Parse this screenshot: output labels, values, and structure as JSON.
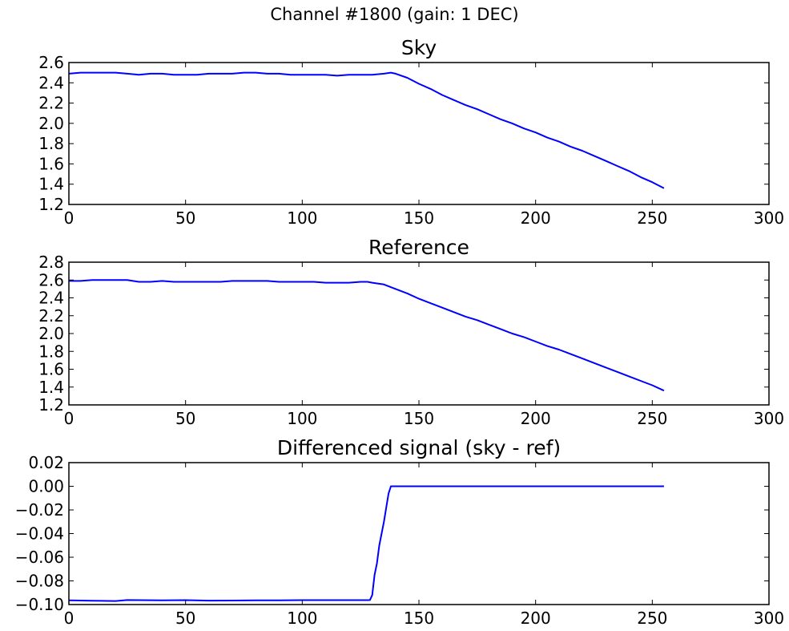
{
  "figure": {
    "suptitle": "Channel #1800 (gain: 1 DEC)"
  },
  "chart_data": [
    {
      "type": "line",
      "title": "Sky",
      "xlabel": "",
      "ylabel": "",
      "xlim": [
        0,
        300
      ],
      "ylim": [
        1.2,
        2.6
      ],
      "xticks": [
        0,
        50,
        100,
        150,
        200,
        250,
        300
      ],
      "xtick_labels": [
        "0",
        "50",
        "100",
        "150",
        "200",
        "250",
        "300"
      ],
      "yticks": [
        1.2,
        1.4,
        1.6,
        1.8,
        2.0,
        2.2,
        2.4,
        2.6
      ],
      "ytick_labels": [
        "1.2",
        "1.4",
        "1.6",
        "1.8",
        "2.0",
        "2.2",
        "2.4",
        "2.6"
      ],
      "grid": false,
      "color": "#0000ff",
      "series": [
        {
          "x": [
            0,
            5,
            10,
            15,
            20,
            25,
            30,
            35,
            40,
            45,
            50,
            55,
            60,
            65,
            70,
            75,
            80,
            85,
            90,
            95,
            100,
            105,
            110,
            115,
            120,
            125,
            130,
            135,
            138,
            140,
            145,
            150,
            155,
            160,
            165,
            170,
            175,
            180,
            185,
            190,
            195,
            200,
            205,
            210,
            215,
            220,
            225,
            230,
            235,
            240,
            245,
            250,
            255
          ],
          "values": [
            2.49,
            2.5,
            2.5,
            2.5,
            2.5,
            2.49,
            2.48,
            2.49,
            2.49,
            2.48,
            2.48,
            2.48,
            2.49,
            2.49,
            2.49,
            2.5,
            2.5,
            2.49,
            2.49,
            2.48,
            2.48,
            2.48,
            2.48,
            2.47,
            2.48,
            2.48,
            2.48,
            2.49,
            2.5,
            2.49,
            2.45,
            2.39,
            2.34,
            2.28,
            2.23,
            2.18,
            2.14,
            2.09,
            2.04,
            2.0,
            1.95,
            1.91,
            1.86,
            1.82,
            1.77,
            1.73,
            1.68,
            1.63,
            1.58,
            1.53,
            1.47,
            1.42,
            1.36
          ]
        }
      ]
    },
    {
      "type": "line",
      "title": "Reference",
      "xlabel": "",
      "ylabel": "",
      "xlim": [
        0,
        300
      ],
      "ylim": [
        1.2,
        2.8
      ],
      "xticks": [
        0,
        50,
        100,
        150,
        200,
        250,
        300
      ],
      "xtick_labels": [
        "0",
        "50",
        "100",
        "150",
        "200",
        "250",
        "300"
      ],
      "yticks": [
        1.2,
        1.4,
        1.6,
        1.8,
        2.0,
        2.2,
        2.4,
        2.6,
        2.8
      ],
      "ytick_labels": [
        "1.2",
        "1.4",
        "1.6",
        "1.8",
        "2.0",
        "2.2",
        "2.4",
        "2.6",
        "2.8"
      ],
      "grid": false,
      "color": "#0000ff",
      "series": [
        {
          "x": [
            0,
            5,
            10,
            15,
            20,
            25,
            30,
            35,
            40,
            45,
            50,
            55,
            60,
            65,
            70,
            75,
            80,
            85,
            90,
            95,
            100,
            105,
            110,
            115,
            120,
            125,
            128,
            130,
            135,
            140,
            145,
            150,
            155,
            160,
            165,
            170,
            175,
            180,
            185,
            190,
            195,
            200,
            205,
            210,
            215,
            220,
            225,
            230,
            235,
            240,
            245,
            250,
            255
          ],
          "values": [
            2.59,
            2.59,
            2.6,
            2.6,
            2.6,
            2.6,
            2.58,
            2.58,
            2.59,
            2.58,
            2.58,
            2.58,
            2.58,
            2.58,
            2.59,
            2.59,
            2.59,
            2.59,
            2.58,
            2.58,
            2.58,
            2.58,
            2.57,
            2.57,
            2.57,
            2.58,
            2.58,
            2.57,
            2.55,
            2.5,
            2.45,
            2.39,
            2.34,
            2.29,
            2.24,
            2.19,
            2.15,
            2.1,
            2.05,
            2.0,
            1.96,
            1.91,
            1.86,
            1.82,
            1.77,
            1.72,
            1.67,
            1.62,
            1.57,
            1.52,
            1.47,
            1.42,
            1.36
          ]
        }
      ]
    },
    {
      "type": "line",
      "title": "Differenced signal (sky - ref)",
      "xlabel": "",
      "ylabel": "",
      "xlim": [
        0,
        300
      ],
      "ylim": [
        -0.1,
        0.02
      ],
      "xticks": [
        0,
        50,
        100,
        150,
        200,
        250,
        300
      ],
      "xtick_labels": [
        "0",
        "50",
        "100",
        "150",
        "200",
        "250",
        "300"
      ],
      "yticks": [
        -0.1,
        -0.08,
        -0.06,
        -0.04,
        -0.02,
        0.0,
        0.02
      ],
      "ytick_labels": [
        "−0.10",
        "−0.08",
        "−0.06",
        "−0.04",
        "−0.02",
        "0.00",
        "0.02"
      ],
      "grid": false,
      "color": "#0000ff",
      "series": [
        {
          "x": [
            0,
            10,
            20,
            25,
            30,
            40,
            50,
            60,
            70,
            80,
            90,
            100,
            110,
            120,
            128,
            129,
            130,
            131,
            132,
            133,
            134,
            135,
            136,
            137,
            138,
            139,
            140,
            150,
            160,
            200,
            255
          ],
          "values": [
            -0.0965,
            -0.0968,
            -0.097,
            -0.0962,
            -0.0963,
            -0.0965,
            -0.0963,
            -0.0967,
            -0.0966,
            -0.0965,
            -0.0964,
            -0.0963,
            -0.0963,
            -0.0963,
            -0.0963,
            -0.0962,
            -0.092,
            -0.075,
            -0.065,
            -0.05,
            -0.04,
            -0.03,
            -0.018,
            -0.006,
            0.0,
            0.0,
            0.0,
            0.0,
            0.0,
            0.0,
            0.0
          ]
        }
      ]
    }
  ]
}
